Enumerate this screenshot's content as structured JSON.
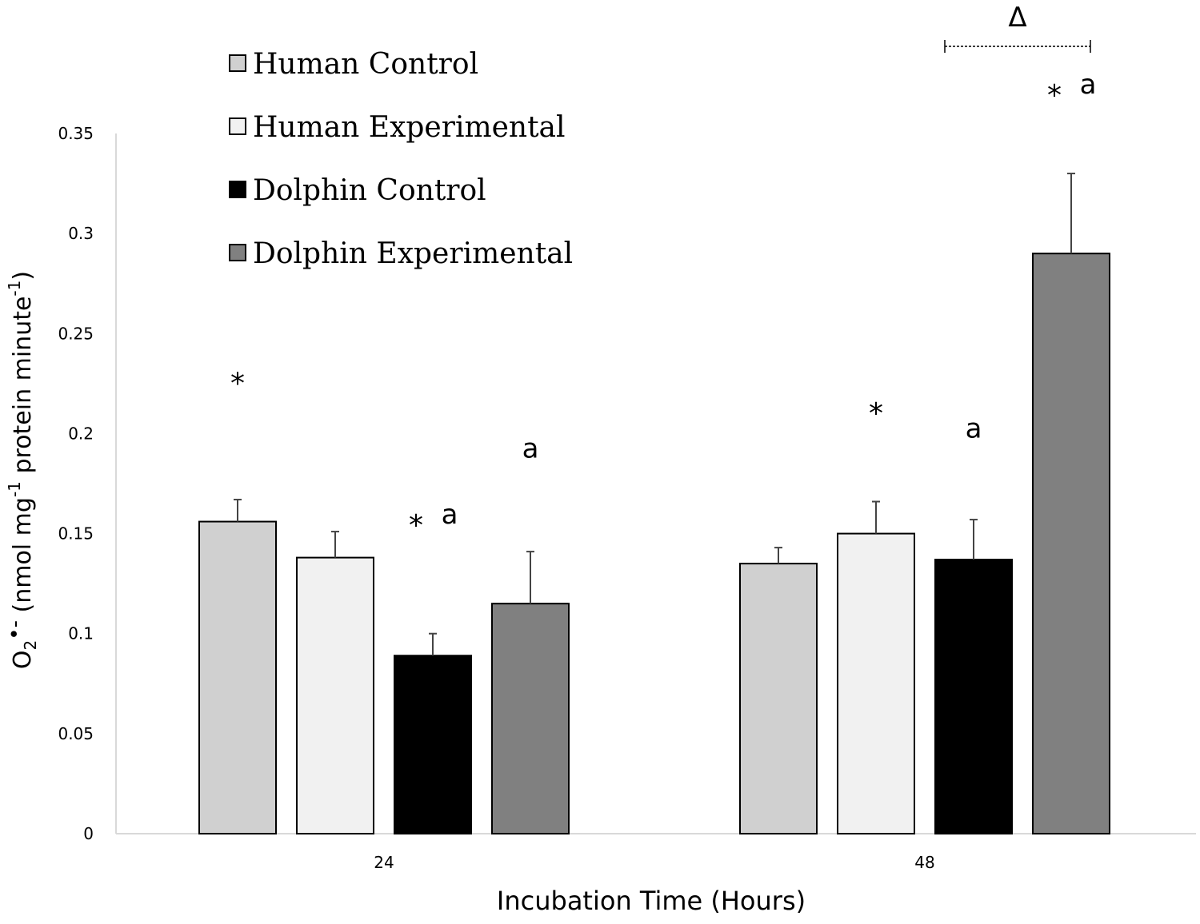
{
  "chart_data": {
    "type": "bar",
    "title": "",
    "xlabel": "Incubation Time (Hours)",
    "ylabel": {
      "main": "O",
      "sub2": "2",
      "dot": "•-",
      "pre": " (nmol mg",
      "sup1": "-1",
      "mid": " protein minute",
      "sup2": "-1",
      "post": ")"
    },
    "ylim": [
      0,
      0.35
    ],
    "yticks": [
      "0",
      "0.05",
      "0.1",
      "0.15",
      "0.2",
      "0.25",
      "0.3",
      "0.35"
    ],
    "ytick_values": [
      0,
      0.05,
      0.1,
      0.15,
      0.2,
      0.25,
      0.3,
      0.35
    ],
    "categories": [
      "24",
      "48"
    ],
    "series": [
      {
        "name": "Human Control",
        "color": "#d0d0d0",
        "values": [
          0.156,
          0.135
        ],
        "errors": [
          0.011,
          0.008
        ]
      },
      {
        "name": "Human Experimental",
        "color": "#f1f1f1",
        "values": [
          0.138,
          0.15
        ],
        "errors": [
          0.013,
          0.016
        ]
      },
      {
        "name": "Dolphin Control",
        "color": "#000000",
        "values": [
          0.089,
          0.137
        ],
        "errors": [
          0.011,
          0.02
        ]
      },
      {
        "name": "Dolphin Experimental",
        "color": "#808080",
        "values": [
          0.115,
          0.29
        ],
        "errors": [
          0.026,
          0.04
        ]
      }
    ],
    "annotations": [
      {
        "category": 0,
        "series": 0,
        "star": "*",
        "letter": "",
        "value": 0.226
      },
      {
        "category": 0,
        "series": 2,
        "star": "*",
        "letter": "a",
        "value": 0.155
      },
      {
        "category": 0,
        "series": 3,
        "star": "",
        "letter": "a",
        "value": 0.188
      },
      {
        "category": 1,
        "series": 1,
        "star": "*",
        "letter": "",
        "value": 0.211
      },
      {
        "category": 1,
        "series": 2,
        "star": "",
        "letter": "a",
        "value": 0.198
      },
      {
        "category": 1,
        "series": 3,
        "star": "*",
        "letter": "a",
        "value": 0.37
      }
    ],
    "bracket": {
      "label": "Δ",
      "category": 1,
      "from_series": 2,
      "to_series": 3
    },
    "legend": "top-left"
  }
}
